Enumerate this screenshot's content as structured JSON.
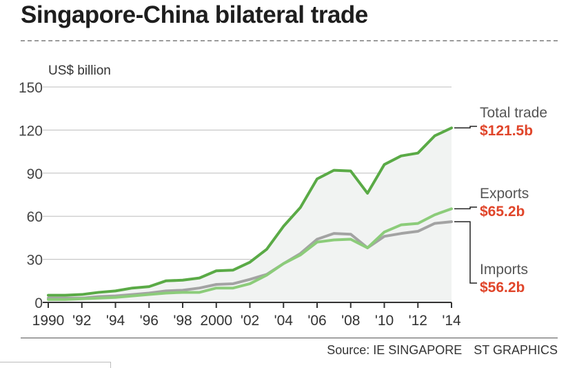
{
  "title": "Singapore-China bilateral trade",
  "source": {
    "text": "Source: IE SINGAPORE",
    "credit": "ST GRAPHICS"
  },
  "colors": {
    "total": "#5aaa46",
    "exports": "#8ccc7a",
    "imports": "#a3a3a3",
    "highlight": "#e0452a",
    "area": "#f1f3f2",
    "grid": "#bdbdbd"
  },
  "chart_data": {
    "type": "line",
    "ylabel": "US$ billion",
    "ylim": [
      0,
      150
    ],
    "yticks": [
      0,
      30,
      60,
      90,
      120,
      150
    ],
    "xlim": [
      1990,
      2014
    ],
    "xticks": [
      1990,
      1992,
      1994,
      1996,
      1998,
      2000,
      2002,
      2004,
      2006,
      2008,
      2010,
      2012,
      2014
    ],
    "xtick_labels": [
      "1990",
      "'92",
      "'94",
      "'96",
      "'98",
      "2000",
      "'02",
      "'04",
      "'06",
      "'08",
      "'10",
      "'12",
      "'14"
    ],
    "x": [
      1990,
      1991,
      1992,
      1993,
      1994,
      1995,
      1996,
      1997,
      1998,
      1999,
      2000,
      2001,
      2002,
      2003,
      2004,
      2005,
      2006,
      2007,
      2008,
      2009,
      2010,
      2011,
      2012,
      2013,
      2014
    ],
    "series": [
      {
        "key": "total",
        "name": "Total trade",
        "end_label": "$121.5b",
        "values": [
          5,
          5,
          5.5,
          7,
          8,
          10,
          11,
          15,
          15.5,
          17,
          22,
          22.5,
          28,
          37,
          53,
          66,
          86,
          92,
          91.5,
          76,
          96,
          102,
          104,
          116,
          121.5
        ]
      },
      {
        "key": "exports",
        "name": "Exports",
        "end_label": "$65.2b",
        "values": [
          2,
          2,
          2.5,
          3,
          3.5,
          4.5,
          5.5,
          6.5,
          7,
          7,
          10,
          10,
          13,
          19,
          27,
          33,
          42,
          43.5,
          44,
          38,
          49,
          54,
          55,
          61,
          65.2
        ]
      },
      {
        "key": "imports",
        "name": "Imports",
        "end_label": "$56.2b",
        "values": [
          3,
          3,
          3,
          4,
          4.5,
          5.5,
          6.5,
          8,
          8.5,
          10,
          12.5,
          13,
          16,
          19.5,
          27,
          34,
          44,
          48,
          47.5,
          38,
          46,
          48,
          49.5,
          55,
          56.2
        ]
      }
    ]
  }
}
